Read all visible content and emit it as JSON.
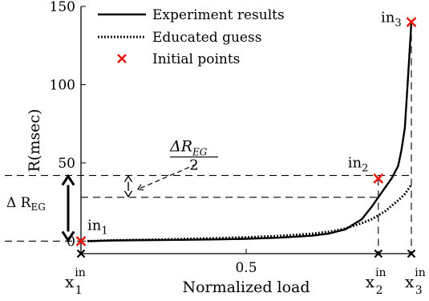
{
  "chart_data": {
    "type": "line",
    "xlabel": "Normalized load",
    "ylabel": "R(msec)",
    "xlim": [
      0,
      1
    ],
    "ylim": [
      -8,
      150
    ],
    "x_ticks": [
      {
        "value": 0.5,
        "label": "0.5"
      }
    ],
    "y_ticks": [
      {
        "value": 0,
        "label": "0"
      },
      {
        "value": 50,
        "label": "50"
      },
      {
        "value": 100,
        "label": "100"
      },
      {
        "value": 150,
        "label": "150"
      }
    ],
    "grid": false,
    "legend_position": "top-left",
    "series": [
      {
        "name": "Experiment results",
        "style": "solid",
        "color": "#000000",
        "x": [
          0.02,
          0.1,
          0.2,
          0.3,
          0.4,
          0.5,
          0.6,
          0.7,
          0.75,
          0.8,
          0.85,
          0.88,
          0.9,
          0.92,
          0.94,
          0.96,
          0.97,
          0.98,
          0.985,
          0.99,
          0.995,
          1.0
        ],
        "y": [
          0,
          0.4,
          0.6,
          0.8,
          1.1,
          1.5,
          2.2,
          3.5,
          4.8,
          7.5,
          14,
          22,
          28,
          34,
          40,
          48,
          58,
          72,
          88,
          105,
          122,
          140
        ]
      },
      {
        "name": "Educated guess",
        "style": "dotted",
        "color": "#000000",
        "x": [
          0.02,
          0.1,
          0.2,
          0.3,
          0.4,
          0.5,
          0.6,
          0.7,
          0.75,
          0.8,
          0.85,
          0.88,
          0.9,
          0.92,
          0.94,
          0.96,
          0.98,
          1.0
        ],
        "y": [
          0,
          0.5,
          0.9,
          1.3,
          1.8,
          2.4,
          3.3,
          4.7,
          6,
          8,
          11.5,
          14,
          16.5,
          19,
          22.5,
          26,
          30,
          36
        ]
      }
    ],
    "initial_points": {
      "name": "Initial points",
      "color": "#e8190f",
      "points": [
        {
          "x": 0.0,
          "y": 0,
          "label": "in",
          "sub": "1"
        },
        {
          "x": 0.9,
          "y": 40,
          "label": "in",
          "sub": "2"
        },
        {
          "x": 1.0,
          "y": 140,
          "label": "in",
          "sub": "3"
        }
      ]
    },
    "x_point_labels": [
      {
        "x": 0.0,
        "base": "x",
        "sup": "in",
        "sub": "1"
      },
      {
        "x": 0.9,
        "base": "x",
        "sup": "in",
        "sub": "2"
      },
      {
        "x": 1.0,
        "base": "x",
        "sup": "in",
        "sub": "3"
      }
    ],
    "annotations": {
      "delta_full": {
        "text": "Δ R",
        "sub": "EG",
        "y_low": 0,
        "y_high": 42
      },
      "delta_half": {
        "numerator": "ΔR",
        "numerator_sub": "EG",
        "denominator": "2",
        "y_low": 28,
        "y_high": 42
      }
    }
  }
}
